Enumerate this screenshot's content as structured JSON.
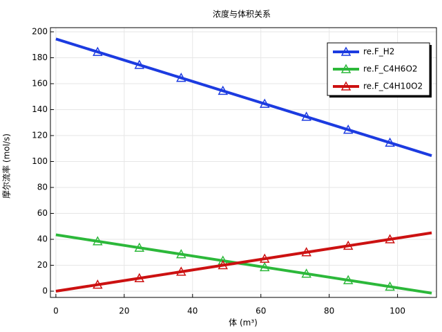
{
  "chart_data": {
    "type": "line",
    "title": "浓度与体积关系",
    "x_label": "体 (m³)",
    "y_label": "摩尔流率 (mol/s)",
    "x": [
      0,
      12.22,
      24.44,
      36.67,
      48.89,
      61.11,
      73.33,
      85.56,
      97.78,
      110
    ],
    "series": [
      {
        "name": "re.F_H2",
        "color": "#1c3be0",
        "values": [
          194.5,
          184.5,
          174.5,
          164.5,
          154.5,
          144.5,
          134.5,
          124.5,
          114.5,
          104.5
        ]
      },
      {
        "name": "re.F_C4H6O2",
        "color": "#2cb83a",
        "values": [
          43.5,
          38.5,
          33.5,
          28.5,
          23.5,
          18.5,
          13.5,
          8.5,
          3.5,
          -1.5
        ]
      },
      {
        "name": "re.F_C4H10O2",
        "color": "#cc1111",
        "values": [
          0,
          5,
          10,
          15,
          20,
          25,
          30,
          35,
          40,
          45
        ]
      }
    ],
    "xlim": [
      -1.6,
      111.4
    ],
    "ylim": [
      -4.8,
      203.2
    ],
    "xticks": [
      0,
      20,
      40,
      60,
      80,
      100
    ],
    "yticks": [
      0,
      20,
      40,
      60,
      80,
      100,
      120,
      140,
      160,
      180,
      200
    ],
    "grid": true,
    "legend": "upper right"
  }
}
